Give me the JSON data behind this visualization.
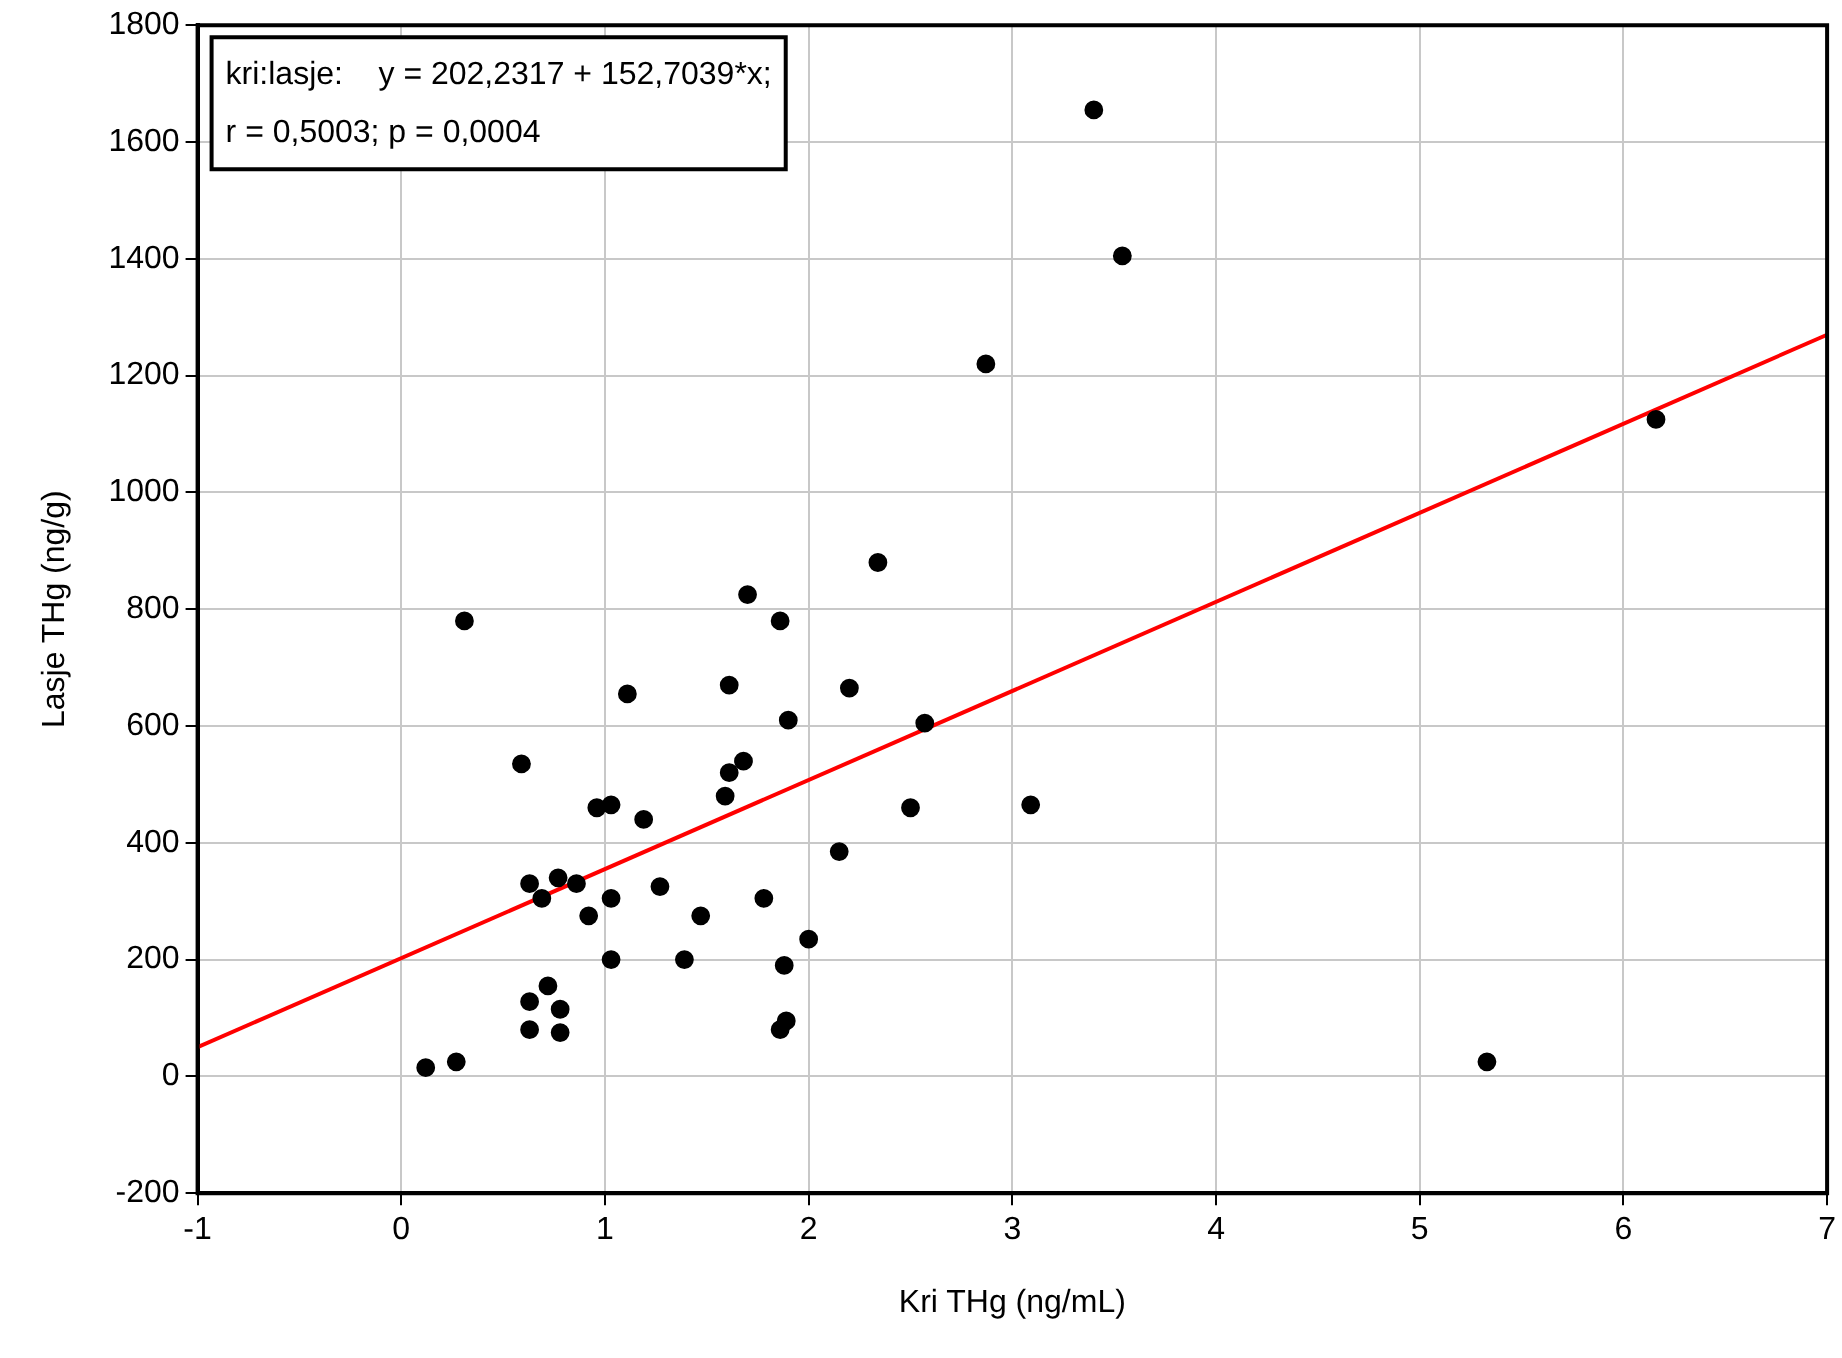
{
  "chart_data": {
    "type": "scatter",
    "xlabel": "Kri THg (ng/mL)",
    "ylabel": "Lasje THg (ng/g)",
    "annotations": [
      "kri:lasje:    y = 202,2317 + 152,7039*x;",
      "r = 0,5003; p = 0,0004"
    ],
    "xlim": [
      -1,
      7
    ],
    "xticks": [
      -1,
      0,
      1,
      2,
      3,
      4,
      5,
      6,
      7
    ],
    "ylim": [
      -200,
      1800
    ],
    "yticks": [
      -200,
      0,
      200,
      400,
      600,
      800,
      1000,
      1200,
      1400,
      1600,
      1800
    ],
    "grid": true,
    "legend": false,
    "marker": "circle",
    "series": [
      {
        "type": "scatter",
        "color": "#000000",
        "x": [
          0.12,
          0.27,
          0.31,
          0.59,
          0.63,
          0.63,
          0.63,
          0.69,
          0.72,
          0.77,
          0.78,
          0.78,
          0.86,
          0.92,
          0.96,
          1.03,
          1.03,
          1.03,
          1.11,
          1.19,
          1.27,
          1.39,
          1.47,
          1.59,
          1.61,
          1.61,
          1.68,
          1.7,
          1.78,
          1.86,
          1.86,
          1.88,
          1.89,
          1.9,
          2.0,
          2.15,
          2.2,
          2.34,
          2.5,
          2.57,
          2.87,
          3.09,
          3.4,
          3.54,
          5.33,
          6.16
        ],
        "values": [
          15,
          25,
          780,
          535,
          330,
          128,
          80,
          305,
          155,
          340,
          115,
          75,
          330,
          275,
          460,
          465,
          305,
          200,
          655,
          440,
          325,
          200,
          275,
          480,
          520,
          670,
          540,
          825,
          305,
          780,
          80,
          190,
          95,
          610,
          235,
          385,
          665,
          880,
          460,
          605,
          1220,
          465,
          1655,
          1405,
          25,
          1125
        ]
      },
      {
        "type": "line",
        "color": "#ff0000",
        "marker": "none",
        "line_style": "solid",
        "x": [
          -1,
          7
        ],
        "values": [
          50,
          1270
        ]
      }
    ]
  }
}
